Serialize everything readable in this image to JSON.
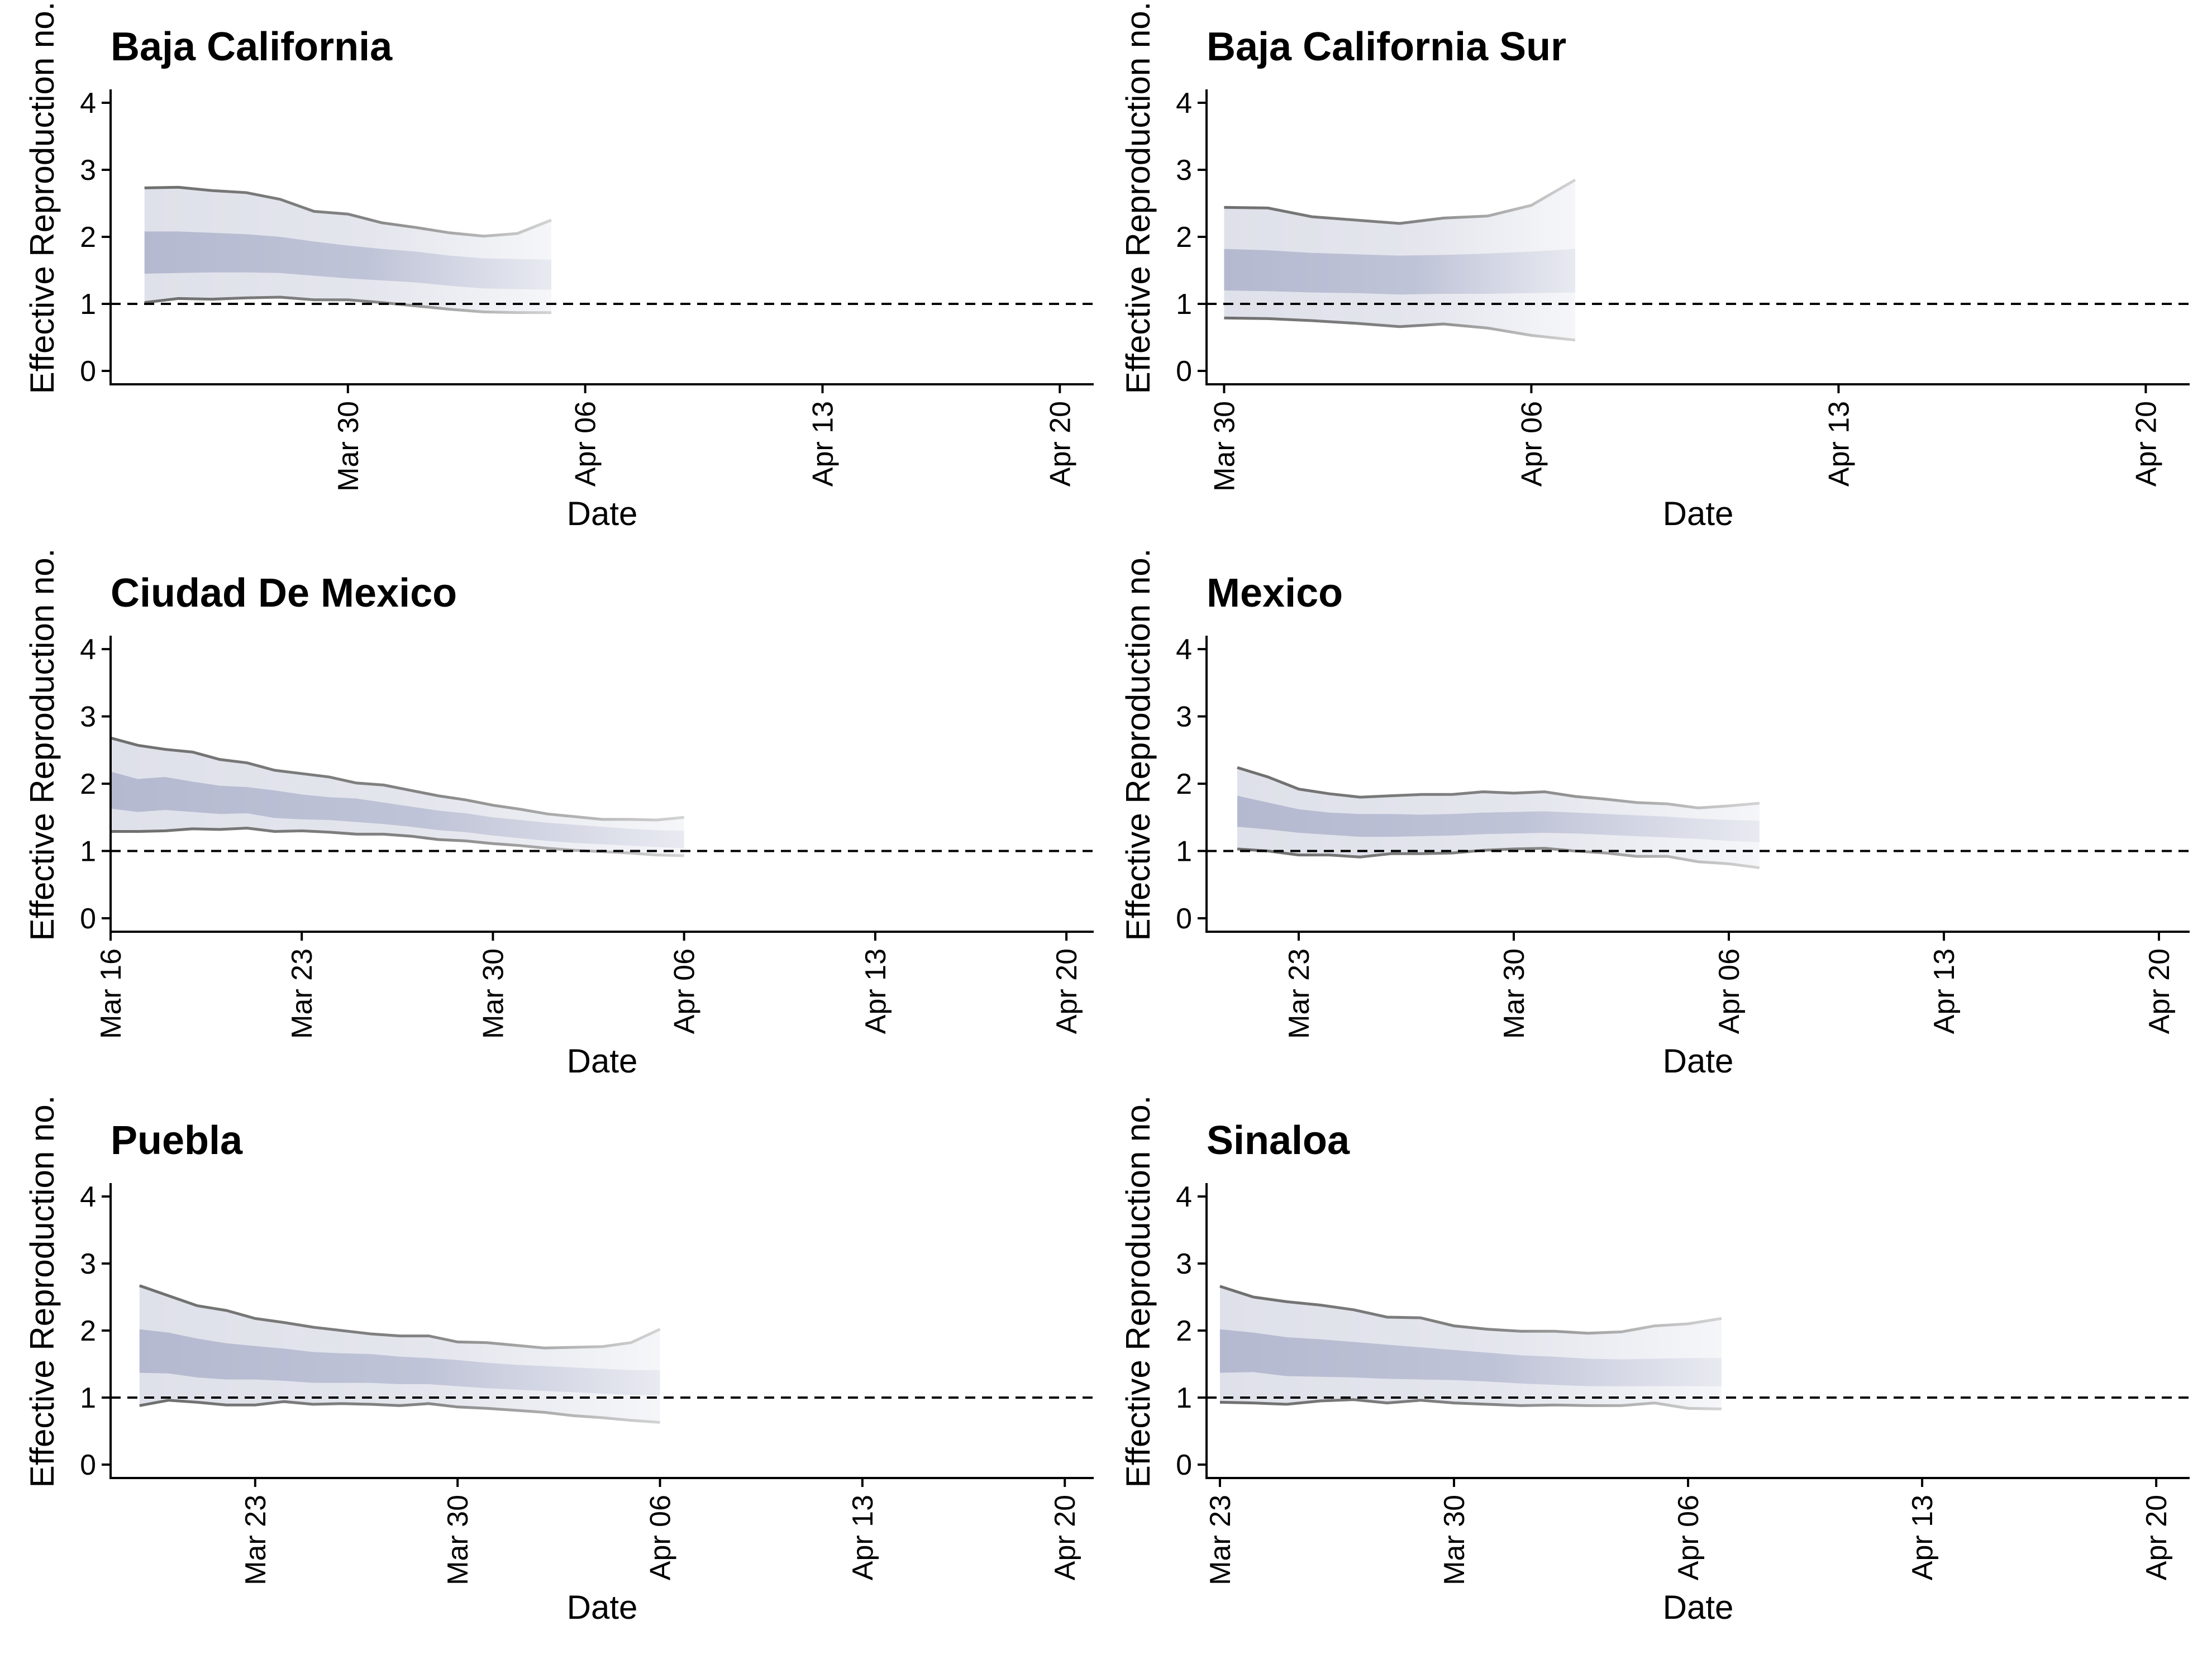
{
  "figure": {
    "title": "",
    "xlabel": "Date",
    "ylabel": "Effective Reproduction no."
  },
  "style": {
    "outer_band_color": "#dfe1ea",
    "inner_band_color": "#b4b9d0",
    "line_color": "#6e6e6e",
    "reference_line_color": "#000000"
  },
  "chart_data": [
    {
      "type": "area",
      "title": "Baja California",
      "xlabel": "Date",
      "ylabel": "Effective Reproduction no.",
      "xlim": [
        "2020-03-23",
        "2020-04-21"
      ],
      "ylim": [
        -0.2,
        4.2
      ],
      "yticks": [
        0,
        1,
        2,
        3,
        4
      ],
      "xticks": [
        "Mar 30",
        "Apr 06",
        "Apr 13",
        "Apr 20"
      ],
      "reference_line": 1,
      "start_date": "2020-03-24",
      "series": [
        {
          "values": [
            2.73,
            2.74,
            2.69,
            2.66,
            2.56,
            2.38,
            2.34,
            2.21,
            2.14,
            2.06,
            2.01,
            2.05,
            2.25
          ]
        },
        {
          "values": [
            2.08,
            2.08,
            2.06,
            2.04,
            2.0,
            1.93,
            1.87,
            1.82,
            1.78,
            1.72,
            1.68,
            1.67,
            1.66
          ]
        },
        {
          "values": [
            1.45,
            1.46,
            1.47,
            1.47,
            1.46,
            1.42,
            1.38,
            1.35,
            1.32,
            1.27,
            1.23,
            1.22,
            1.21
          ]
        },
        {
          "values": [
            1.02,
            1.08,
            1.07,
            1.09,
            1.1,
            1.06,
            1.06,
            1.02,
            0.97,
            0.92,
            0.88,
            0.87,
            0.87
          ]
        }
      ]
    },
    {
      "type": "area",
      "title": "Baja California Sur",
      "xlabel": "Date",
      "ylabel": "Effective Reproduction no.",
      "xlim": [
        "2020-03-29.6",
        "2020-04-21"
      ],
      "ylim": [
        -0.2,
        4.2
      ],
      "yticks": [
        0,
        1,
        2,
        3,
        4
      ],
      "xticks": [
        "Mar 30",
        "Apr 06",
        "Apr 13",
        "Apr 20"
      ],
      "reference_line": 1,
      "start_date": "2020-03-30",
      "series": [
        {
          "values": [
            2.44,
            2.43,
            2.3,
            2.25,
            2.2,
            2.28,
            2.31,
            2.47,
            2.85
          ]
        },
        {
          "values": [
            1.82,
            1.8,
            1.76,
            1.74,
            1.72,
            1.73,
            1.75,
            1.78,
            1.82
          ]
        },
        {
          "values": [
            1.2,
            1.19,
            1.17,
            1.16,
            1.14,
            1.15,
            1.15,
            1.16,
            1.17
          ]
        },
        {
          "values": [
            0.79,
            0.78,
            0.75,
            0.71,
            0.66,
            0.7,
            0.64,
            0.53,
            0.46
          ]
        }
      ]
    },
    {
      "type": "area",
      "title": "Ciudad De Mexico",
      "xlabel": "Date",
      "ylabel": "Effective Reproduction no.",
      "xlim": [
        "2020-03-16",
        "2020-04-21"
      ],
      "ylim": [
        -0.2,
        4.2
      ],
      "yticks": [
        0,
        1,
        2,
        3,
        4
      ],
      "xticks": [
        "Mar 16",
        "Mar 23",
        "Mar 30",
        "Apr 06",
        "Apr 13",
        "Apr 20"
      ],
      "reference_line": 1,
      "start_date": "2020-03-16",
      "series": [
        {
          "values": [
            2.68,
            2.57,
            2.51,
            2.47,
            2.36,
            2.31,
            2.2,
            2.15,
            2.1,
            2.01,
            1.98,
            1.9,
            1.82,
            1.76,
            1.68,
            1.62,
            1.55,
            1.51,
            1.47,
            1.47,
            1.46,
            1.5
          ]
        },
        {
          "values": [
            2.18,
            2.07,
            2.1,
            2.03,
            1.97,
            1.95,
            1.9,
            1.84,
            1.8,
            1.78,
            1.72,
            1.66,
            1.6,
            1.56,
            1.5,
            1.46,
            1.42,
            1.39,
            1.36,
            1.33,
            1.31,
            1.3
          ]
        },
        {
          "values": [
            1.63,
            1.58,
            1.61,
            1.58,
            1.55,
            1.56,
            1.49,
            1.47,
            1.46,
            1.43,
            1.4,
            1.36,
            1.31,
            1.28,
            1.23,
            1.19,
            1.15,
            1.12,
            1.1,
            1.08,
            1.06,
            1.04
          ]
        },
        {
          "values": [
            1.29,
            1.29,
            1.3,
            1.33,
            1.32,
            1.34,
            1.29,
            1.3,
            1.28,
            1.25,
            1.25,
            1.22,
            1.17,
            1.15,
            1.11,
            1.08,
            1.04,
            1.01,
            0.99,
            0.97,
            0.94,
            0.93
          ]
        }
      ]
    },
    {
      "type": "area",
      "title": "Mexico",
      "xlabel": "Date",
      "ylabel": "Effective Reproduction no.",
      "xlim": [
        "2020-03-20",
        "2020-04-21"
      ],
      "ylim": [
        -0.2,
        4.2
      ],
      "yticks": [
        0,
        1,
        2,
        3,
        4
      ],
      "xticks": [
        "Mar 23",
        "Mar 30",
        "Apr 06",
        "Apr 13",
        "Apr 20"
      ],
      "reference_line": 1,
      "start_date": "2020-03-21",
      "series": [
        {
          "values": [
            2.24,
            2.1,
            1.92,
            1.85,
            1.8,
            1.82,
            1.84,
            1.84,
            1.88,
            1.86,
            1.88,
            1.81,
            1.77,
            1.72,
            1.7,
            1.64,
            1.67,
            1.71
          ]
        },
        {
          "values": [
            1.82,
            1.72,
            1.62,
            1.57,
            1.55,
            1.55,
            1.54,
            1.55,
            1.57,
            1.58,
            1.59,
            1.57,
            1.55,
            1.53,
            1.51,
            1.48,
            1.46,
            1.45
          ]
        },
        {
          "values": [
            1.36,
            1.32,
            1.27,
            1.24,
            1.21,
            1.21,
            1.22,
            1.23,
            1.25,
            1.26,
            1.27,
            1.26,
            1.24,
            1.22,
            1.2,
            1.18,
            1.15,
            1.13
          ]
        },
        {
          "values": [
            1.03,
            1.0,
            0.94,
            0.94,
            0.91,
            0.96,
            0.96,
            0.97,
            1.01,
            1.03,
            1.04,
            1.0,
            0.97,
            0.92,
            0.92,
            0.84,
            0.81,
            0.75
          ]
        }
      ]
    },
    {
      "type": "area",
      "title": "Puebla",
      "xlabel": "Date",
      "ylabel": "Effective Reproduction no.",
      "xlim": [
        "2020-03-18",
        "2020-04-21"
      ],
      "ylim": [
        -0.2,
        4.2
      ],
      "yticks": [
        0,
        1,
        2,
        3,
        4
      ],
      "xticks": [
        "Mar 23",
        "Mar 30",
        "Apr 06",
        "Apr 13",
        "Apr 20"
      ],
      "reference_line": 1,
      "start_date": "2020-03-19",
      "series": [
        {
          "values": [
            2.67,
            2.52,
            2.37,
            2.3,
            2.18,
            2.12,
            2.05,
            2.0,
            1.95,
            1.92,
            1.92,
            1.83,
            1.82,
            1.78,
            1.74,
            1.75,
            1.76,
            1.82,
            2.02
          ]
        },
        {
          "values": [
            2.02,
            1.97,
            1.88,
            1.81,
            1.77,
            1.73,
            1.68,
            1.66,
            1.65,
            1.61,
            1.59,
            1.56,
            1.52,
            1.49,
            1.47,
            1.45,
            1.43,
            1.41,
            1.41
          ]
        },
        {
          "values": [
            1.37,
            1.36,
            1.3,
            1.27,
            1.27,
            1.25,
            1.22,
            1.22,
            1.22,
            1.2,
            1.2,
            1.17,
            1.14,
            1.12,
            1.1,
            1.08,
            1.06,
            1.04,
            1.03
          ]
        },
        {
          "values": [
            0.88,
            0.96,
            0.93,
            0.89,
            0.89,
            0.94,
            0.9,
            0.91,
            0.9,
            0.88,
            0.91,
            0.86,
            0.84,
            0.81,
            0.78,
            0.73,
            0.7,
            0.66,
            0.63
          ]
        }
      ]
    },
    {
      "type": "area",
      "title": "Sinaloa",
      "xlabel": "Date",
      "ylabel": "Effective Reproduction no.",
      "xlim": [
        "2020-03-22.6",
        "2020-04-21"
      ],
      "ylim": [
        -0.2,
        4.2
      ],
      "yticks": [
        0,
        1,
        2,
        3,
        4
      ],
      "xticks": [
        "Mar 23",
        "Mar 30",
        "Apr 06",
        "Apr 13",
        "Apr 20"
      ],
      "reference_line": 1,
      "start_date": "2020-03-23",
      "series": [
        {
          "values": [
            2.66,
            2.5,
            2.43,
            2.38,
            2.31,
            2.2,
            2.19,
            2.07,
            2.02,
            1.99,
            1.99,
            1.96,
            1.98,
            2.07,
            2.1,
            2.18
          ]
        },
        {
          "values": [
            2.02,
            1.97,
            1.9,
            1.87,
            1.83,
            1.79,
            1.75,
            1.71,
            1.67,
            1.63,
            1.61,
            1.58,
            1.57,
            1.58,
            1.59,
            1.59
          ]
        },
        {
          "values": [
            1.37,
            1.38,
            1.32,
            1.31,
            1.3,
            1.28,
            1.27,
            1.26,
            1.24,
            1.21,
            1.19,
            1.17,
            1.17,
            1.17,
            1.17,
            1.17
          ]
        },
        {
          "values": [
            0.93,
            0.92,
            0.9,
            0.95,
            0.97,
            0.92,
            0.96,
            0.92,
            0.9,
            0.88,
            0.89,
            0.88,
            0.88,
            0.92,
            0.84,
            0.83
          ]
        }
      ]
    }
  ]
}
